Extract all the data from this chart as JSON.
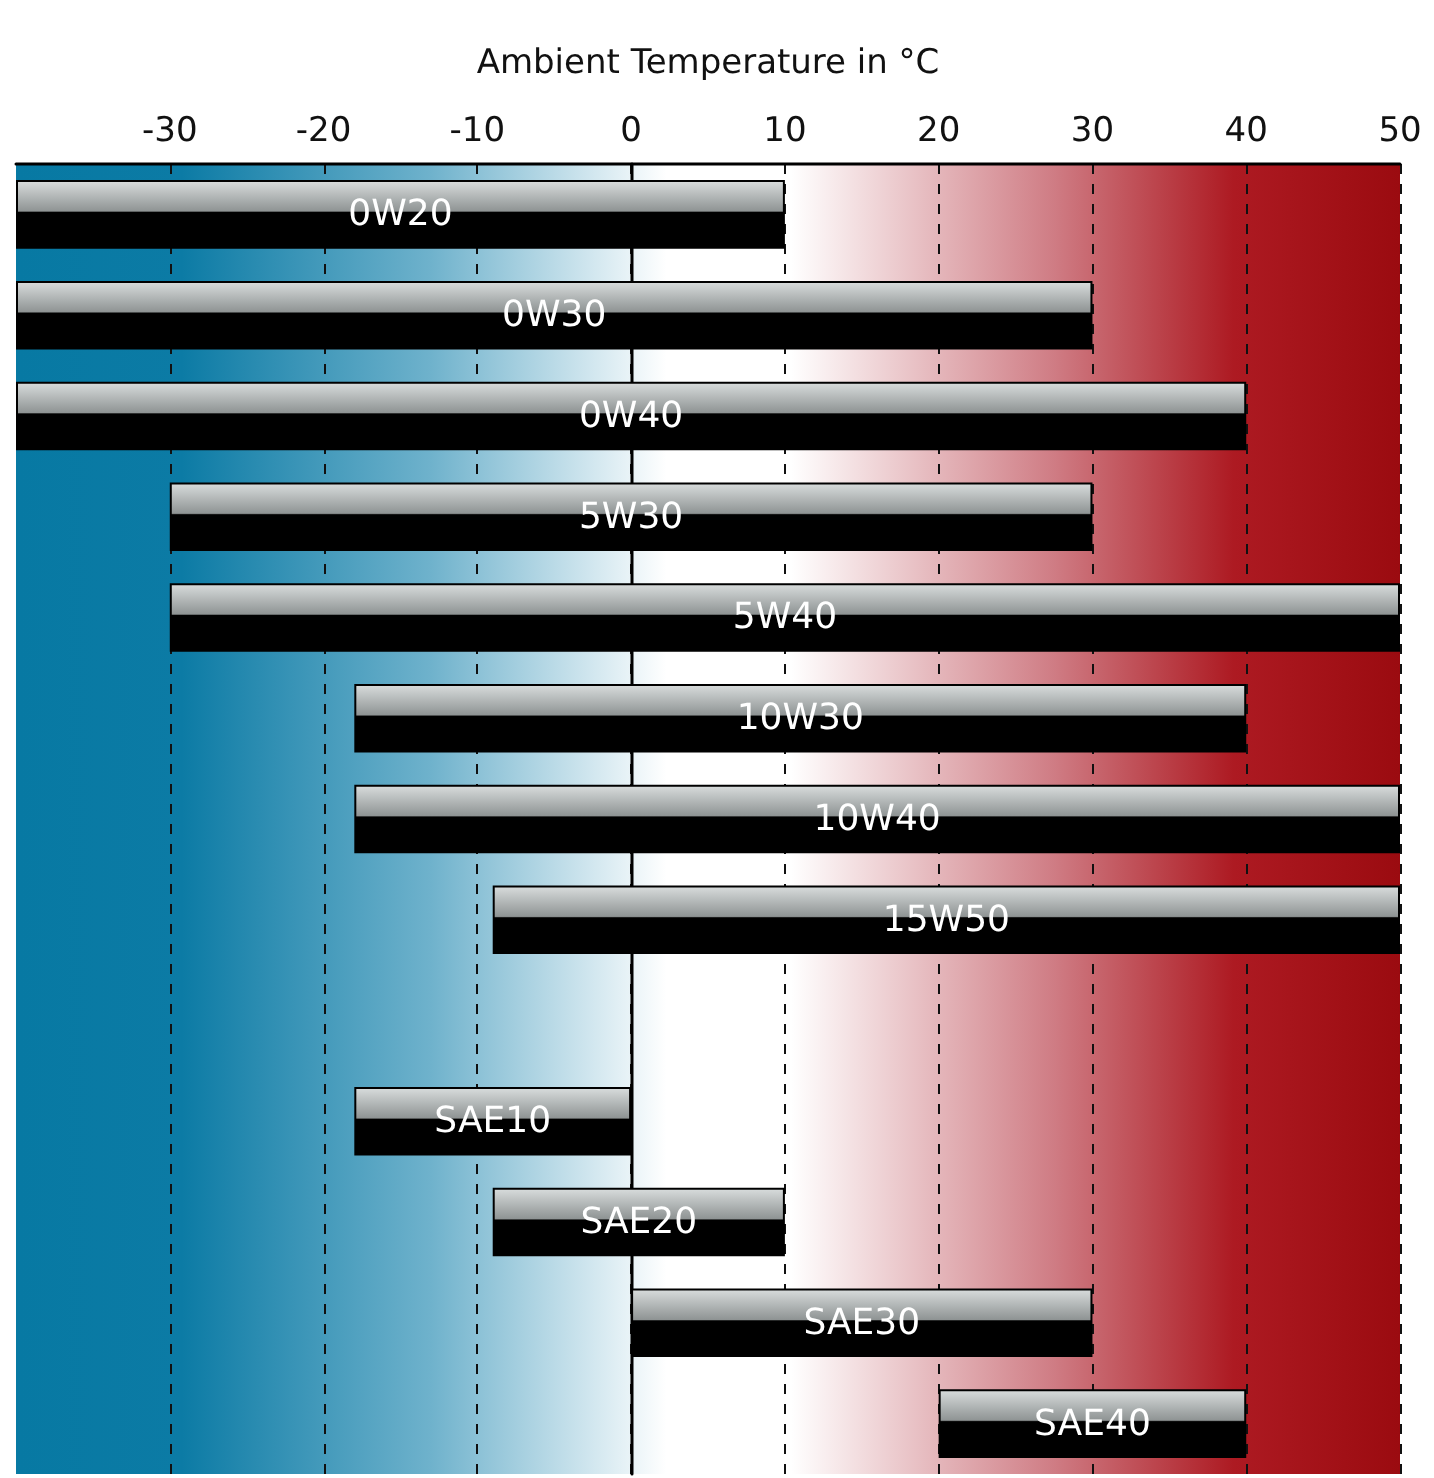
{
  "chart_data": {
    "type": "bar",
    "orientation": "horizontal",
    "xlabel": "Ambient Temperature in °C",
    "categories": [
      "0W20",
      "0W30",
      "0W40",
      "5W30",
      "5W40",
      "10W30",
      "10W40",
      "15W50",
      null,
      "SAE10",
      "SAE20",
      "SAE30",
      "SAE40"
    ],
    "base": [
      -40,
      -40,
      -40,
      -30,
      -30,
      -18,
      -18,
      -9,
      null,
      -18,
      -9,
      0,
      20
    ],
    "values": [
      50,
      70,
      80,
      60,
      80,
      58,
      68,
      59,
      null,
      18,
      19,
      30,
      20
    ],
    "color": "#000000",
    "xlim": [
      -40,
      50
    ],
    "xticks": [
      -30,
      -20,
      -10,
      0,
      10,
      20,
      30,
      40,
      50
    ],
    "grid": "x",
    "tick_labels": "x"
  }
}
